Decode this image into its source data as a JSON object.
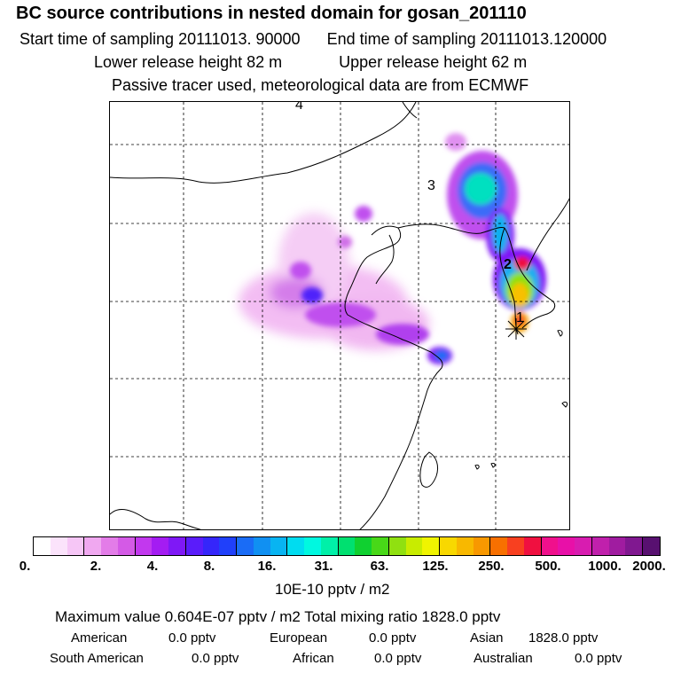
{
  "header": {
    "title": "BC  source contributions in nested domain for gosan_201110",
    "start_label": "Start time of sampling 20111013. 90000",
    "end_label": "End time of sampling 20111013.120000",
    "lower_label": "Lower release height   82 m",
    "upper_label": "Upper release height   62 m",
    "tracer_note": "Passive tracer used, meteorological data are from ECMWF"
  },
  "map": {
    "markers": [
      "1",
      "2",
      "3",
      "4"
    ]
  },
  "colorbar": {
    "labels": [
      "0.",
      "2.",
      "4.",
      "8.",
      "16.",
      "31.",
      "63.",
      "125.",
      "250.",
      "500.",
      "1000.",
      "2000."
    ],
    "units": "10E-10 pptv / m2",
    "colors": [
      "#ffffff",
      "#fbe3fb",
      "#f6c6f6",
      "#f0a8f0",
      "#e37ce8",
      "#d45ae6",
      "#c238ee",
      "#a41cf2",
      "#7f18f6",
      "#5a1cfa",
      "#3526fa",
      "#2040fa",
      "#1a6cf6",
      "#1090f2",
      "#08b4f2",
      "#00dcf0",
      "#00f8e0",
      "#00f0a8",
      "#00e070",
      "#10d030",
      "#48d818",
      "#90e010",
      "#c8ec00",
      "#f0f400",
      "#f8d800",
      "#f8b800",
      "#f89800",
      "#f87000",
      "#f84020",
      "#f01040",
      "#f0108c",
      "#e810a8",
      "#d81cb0",
      "#c020ac",
      "#a01ca0",
      "#801890",
      "#581070"
    ]
  },
  "summary": {
    "max_line": "Maximum value  0.604E-07 pptv / m2     Total mixing ratio     1828.0 pptv",
    "regions": [
      {
        "name": "American",
        "value": "0.0 pptv"
      },
      {
        "name": "European",
        "value": "0.0 pptv"
      },
      {
        "name": "Asian",
        "value": "1828.0 pptv"
      },
      {
        "name": "South American",
        "value": "0.0 pptv"
      },
      {
        "name": "African",
        "value": "0.0 pptv"
      },
      {
        "name": "Australian",
        "value": "0.0 pptv"
      }
    ]
  }
}
